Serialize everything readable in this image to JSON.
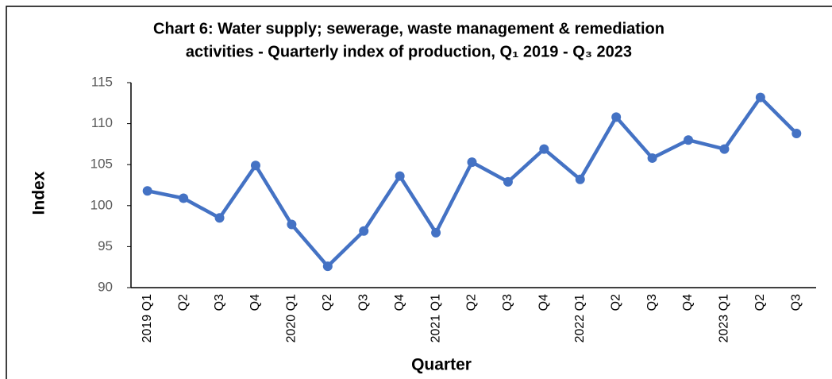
{
  "chart_data": {
    "type": "line",
    "title": [
      "Chart 6: Water supply; sewerage, waste management & remediation",
      "activities - Quarterly index of production,  Q₁ 2019 - Q₃ 2023"
    ],
    "x_label": "Quarter",
    "y_label": "Index",
    "categories": [
      "2019 Q1",
      "Q2",
      "Q3",
      "Q4",
      "2020 Q1",
      "Q2",
      "Q3",
      "Q4",
      "2021 Q1",
      "Q2",
      "Q3",
      "Q4",
      "2022 Q1",
      "Q2",
      "Q3",
      "Q4",
      "2023 Q1",
      "Q2",
      "Q3"
    ],
    "values": [
      101.8,
      100.9,
      98.5,
      104.9,
      97.7,
      92.6,
      96.9,
      103.6,
      96.7,
      105.3,
      102.9,
      106.9,
      103.2,
      110.8,
      105.8,
      108.0,
      106.9,
      113.2,
      108.8
    ],
    "color": "#4472c4",
    "ylim": [
      90,
      115
    ],
    "yticks": [
      90,
      95,
      100,
      105,
      110,
      115
    ],
    "grid": false
  }
}
